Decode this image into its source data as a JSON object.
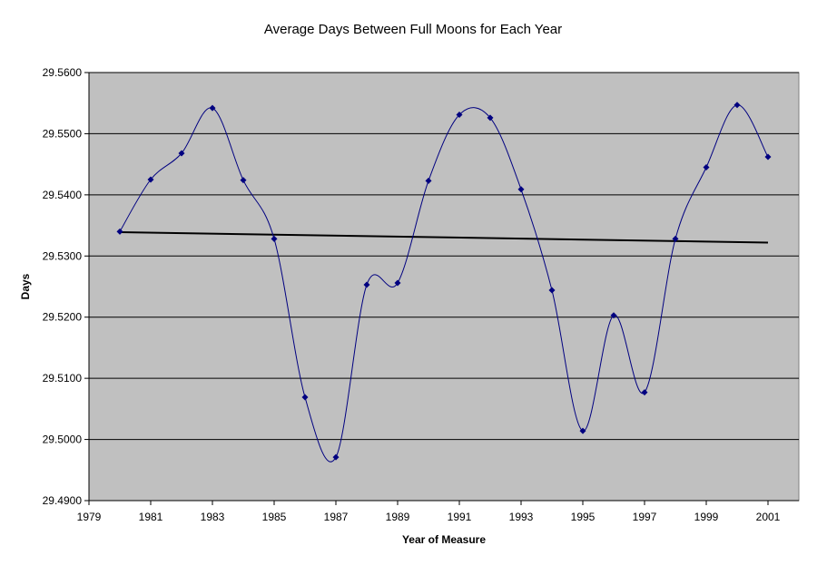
{
  "chart_data": {
    "type": "scatter",
    "title": "Average Days Between Full Moons for Each Year",
    "xlabel": "Year of Measure",
    "ylabel": "Days",
    "xlim": [
      1979,
      2001
    ],
    "ylim": [
      29.49,
      29.56
    ],
    "x_ticks": [
      "1979",
      "1981",
      "1983",
      "1985",
      "1987",
      "1989",
      "1991",
      "1993",
      "1995",
      "1997",
      "1999",
      "2001"
    ],
    "y_ticks": [
      "29.4900",
      "29.5000",
      "29.5100",
      "29.5200",
      "29.5300",
      "29.5400",
      "29.5500",
      "29.5600"
    ],
    "grid": "horizontal",
    "legend": "none",
    "series": [
      {
        "style": "smoothed line with markers",
        "color": "#000080",
        "x": [
          1980,
          1981,
          1982,
          1983,
          1984,
          1985,
          1986,
          1987,
          1988,
          1989,
          1990,
          1991,
          1992,
          1993,
          1994,
          1995,
          1996,
          1997,
          1998,
          1999,
          2000,
          2001
        ],
        "y": [
          29.534,
          29.5425,
          29.5468,
          29.5542,
          29.5424,
          29.5328,
          29.5069,
          29.4971,
          29.5253,
          29.5256,
          29.5423,
          29.5531,
          29.5526,
          29.5409,
          29.5244,
          29.5014,
          29.5203,
          29.5077,
          29.5328,
          29.5445,
          29.5547,
          29.5462
        ]
      },
      {
        "style": "linear trendline",
        "color": "#000000",
        "x": [
          1980,
          2001
        ],
        "y": [
          29.5339,
          29.5322
        ]
      }
    ],
    "colors": {
      "plot_background": "#c0c0c0",
      "gridline": "#000000",
      "series_line": "#000080",
      "trendline": "#000000"
    }
  }
}
